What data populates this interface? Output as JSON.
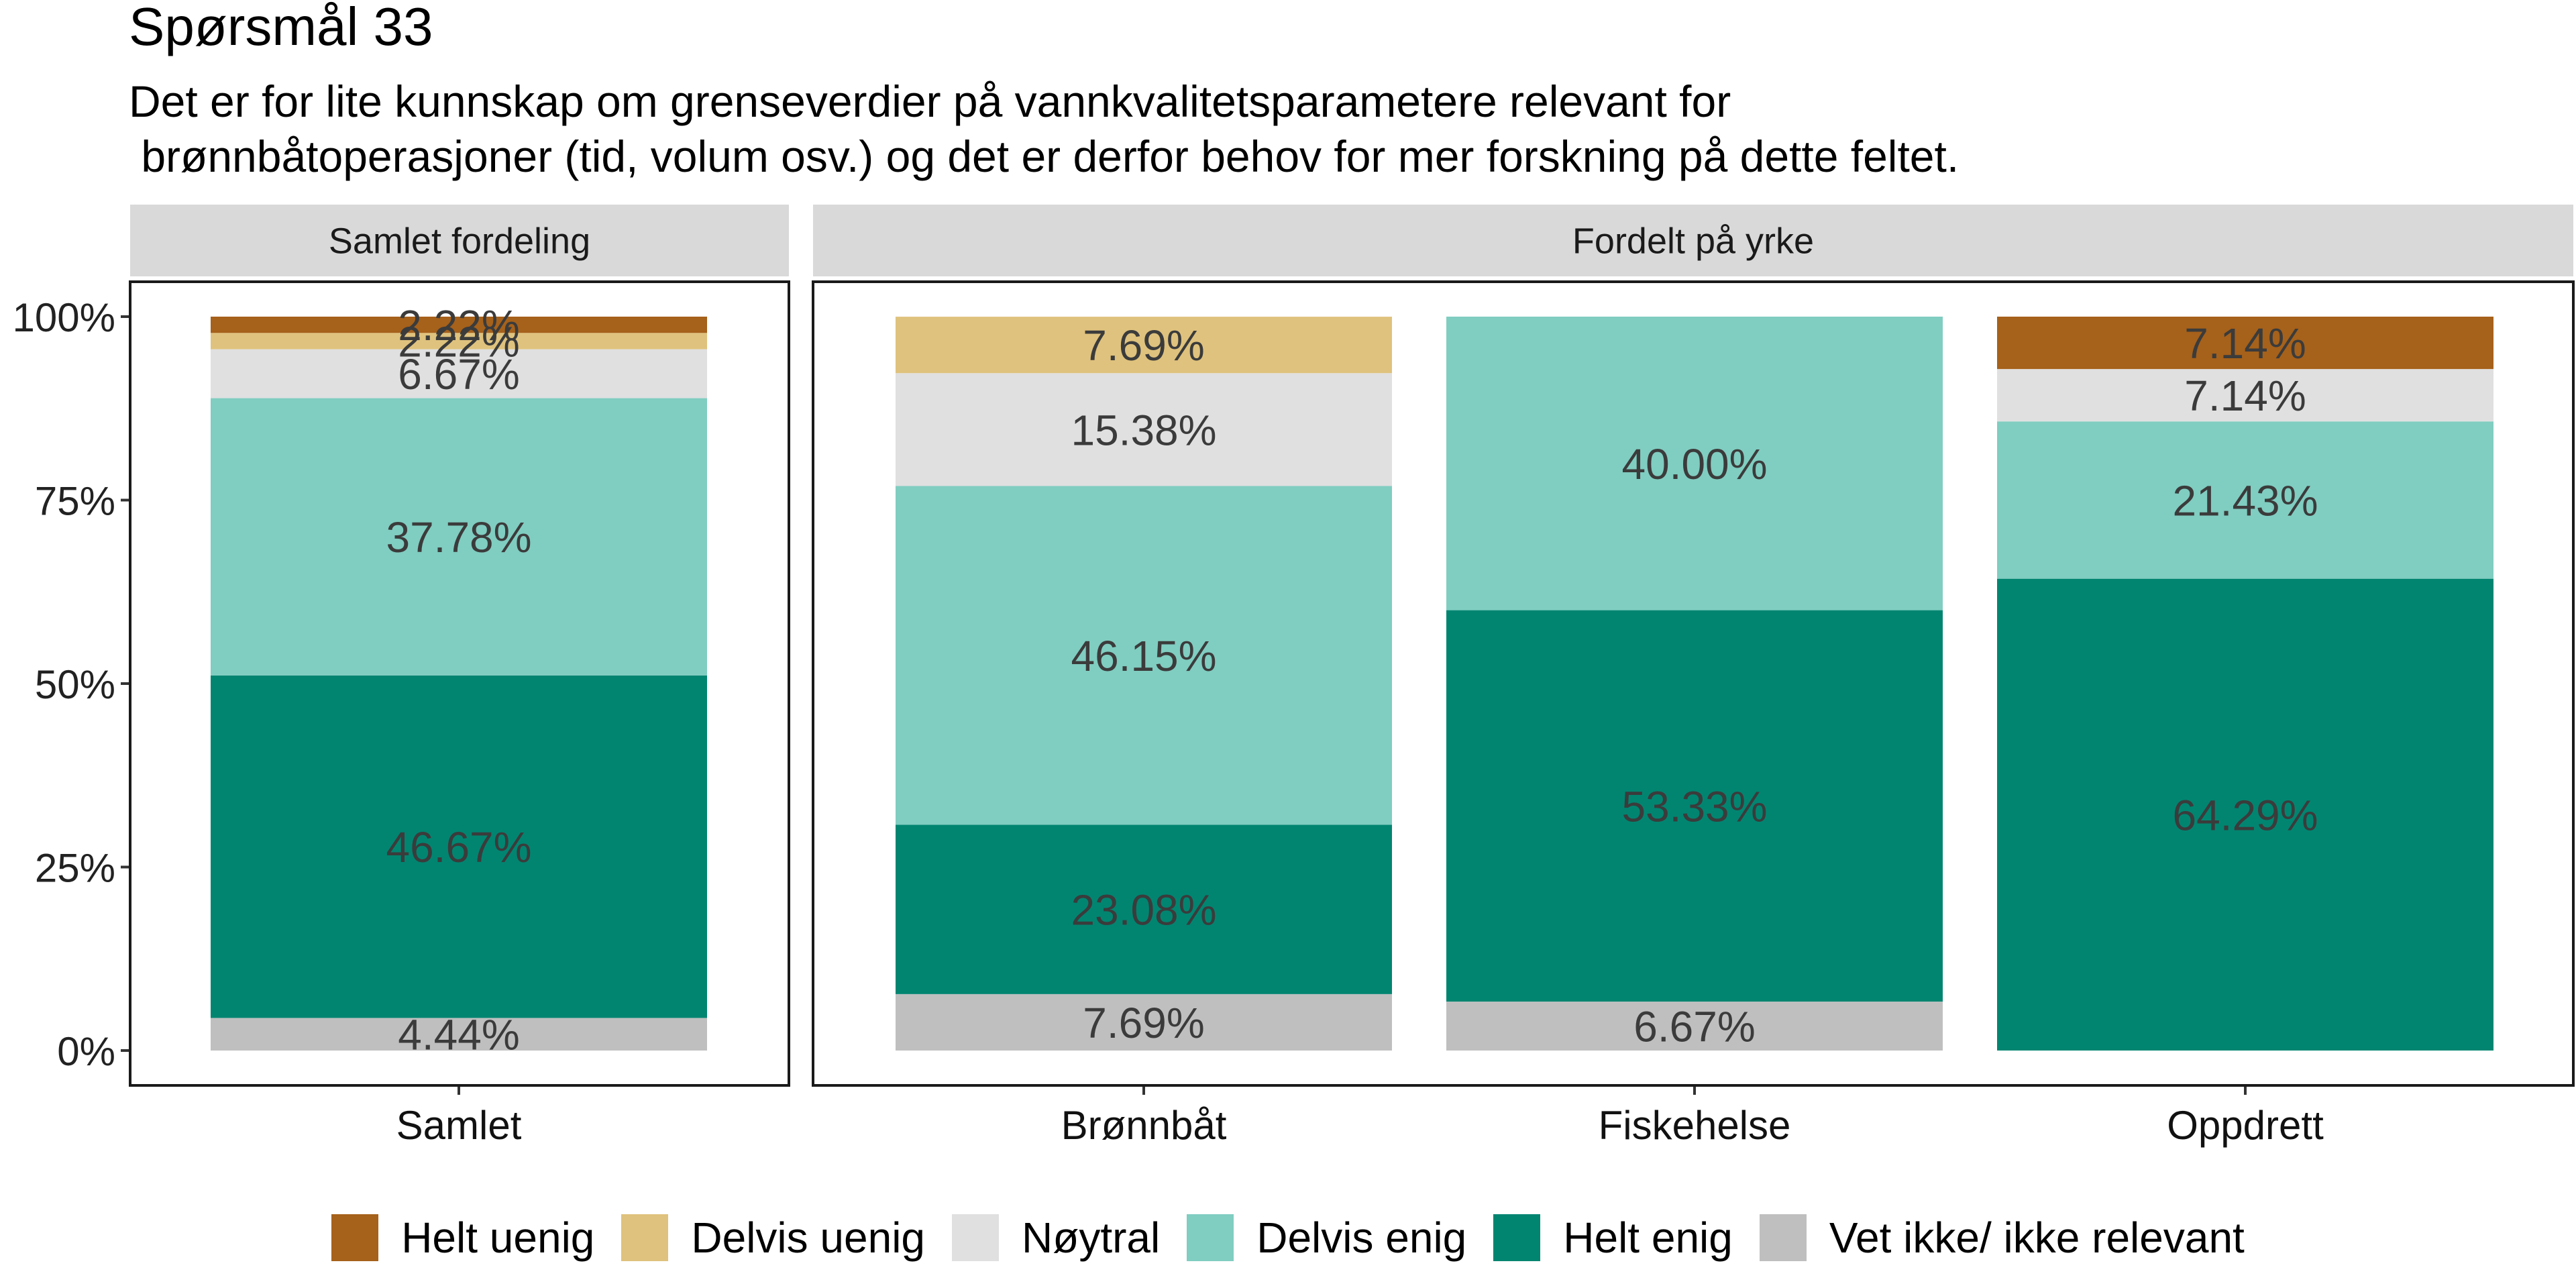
{
  "chart_data": {
    "type": "bar",
    "stacked": true,
    "title": "Spørsmål 33",
    "subtitle": "Det er for lite kunnskap om grenseverdier på vannkvalitetsparametere relevant for\n brønnbåtoperasjoner (tid, volum osv.) og det er derfor behov for mer forskning på dette feltet.",
    "xlabel": "",
    "ylabel": "",
    "ylim": [
      0,
      1
    ],
    "y_ticks": [
      {
        "value": 0,
        "label": "0%"
      },
      {
        "value": 0.25,
        "label": "25%"
      },
      {
        "value": 0.5,
        "label": "50%"
      },
      {
        "value": 0.75,
        "label": "75%"
      },
      {
        "value": 1,
        "label": "100%"
      }
    ],
    "legend_position": "bottom",
    "legend": [
      {
        "key": "helt_uenig",
        "label": "Helt uenig",
        "color": "#A6611A"
      },
      {
        "key": "delvis_uenig",
        "label": "Delvis uenig",
        "color": "#DFC27D"
      },
      {
        "key": "noytral",
        "label": "Nøytral",
        "color": "#E0E0E0"
      },
      {
        "key": "delvis_enig",
        "label": "Delvis enig",
        "color": "#80CDC1"
      },
      {
        "key": "helt_enig",
        "label": "Helt enig",
        "color": "#018571"
      },
      {
        "key": "vet_ikke",
        "label": "Vet ikke/ ikke relevant",
        "color": "#BFBFBF"
      }
    ],
    "stack_order_bottom_to_top": [
      "vet_ikke",
      "helt_enig",
      "delvis_enig",
      "noytral",
      "delvis_uenig",
      "helt_uenig"
    ],
    "panels": [
      {
        "strip": "Samlet fordeling",
        "bars": [
          {
            "category": "Samlet",
            "segments": [
              {
                "key": "vet_ikke",
                "value": 0.0444,
                "label": "4.44%"
              },
              {
                "key": "helt_enig",
                "value": 0.4667,
                "label": "46.67%"
              },
              {
                "key": "delvis_enig",
                "value": 0.3778,
                "label": "37.78%"
              },
              {
                "key": "noytral",
                "value": 0.0667,
                "label": "6.67%"
              },
              {
                "key": "delvis_uenig",
                "value": 0.0222,
                "label": "2.22%"
              },
              {
                "key": "helt_uenig",
                "value": 0.0222,
                "label": "2.22%"
              }
            ]
          }
        ]
      },
      {
        "strip": "Fordelt på yrke",
        "bars": [
          {
            "category": "Brønnbåt",
            "segments": [
              {
                "key": "vet_ikke",
                "value": 0.0769,
                "label": "7.69%"
              },
              {
                "key": "helt_enig",
                "value": 0.2308,
                "label": "23.08%"
              },
              {
                "key": "delvis_enig",
                "value": 0.4615,
                "label": "46.15%"
              },
              {
                "key": "noytral",
                "value": 0.1538,
                "label": "15.38%"
              },
              {
                "key": "delvis_uenig",
                "value": 0.0769,
                "label": "7.69%"
              }
            ]
          },
          {
            "category": "Fiskehelse",
            "segments": [
              {
                "key": "vet_ikke",
                "value": 0.0667,
                "label": "6.67%"
              },
              {
                "key": "helt_enig",
                "value": 0.5333,
                "label": "53.33%"
              },
              {
                "key": "delvis_enig",
                "value": 0.4,
                "label": "40.00%"
              }
            ]
          },
          {
            "category": "Oppdrett",
            "segments": [
              {
                "key": "helt_enig",
                "value": 0.6429,
                "label": "64.29%"
              },
              {
                "key": "delvis_enig",
                "value": 0.2143,
                "label": "21.43%"
              },
              {
                "key": "noytral",
                "value": 0.0714,
                "label": "7.14%"
              },
              {
                "key": "helt_uenig",
                "value": 0.0714,
                "label": "7.14%"
              }
            ]
          }
        ]
      }
    ]
  }
}
